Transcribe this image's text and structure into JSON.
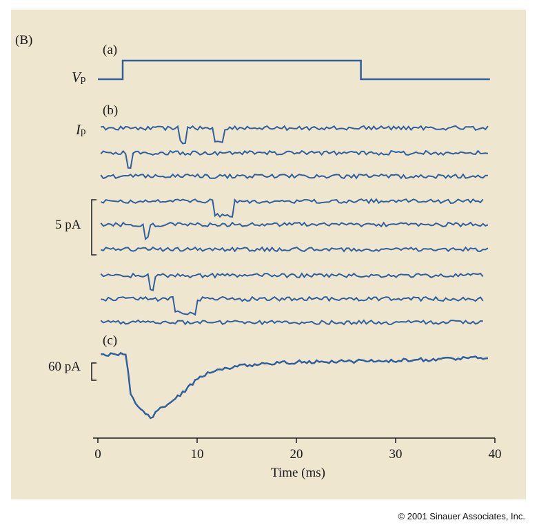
{
  "panel_label": "(B)",
  "copyright": "© 2001 Sinauer Associates, Inc.",
  "colors": {
    "trace": "#2e5f9e",
    "axis": "#1a1a1a",
    "panel": "#efe6cf"
  },
  "chart_data": {
    "type": "line",
    "xlabel": "Time (ms)",
    "xlim": [
      0,
      40
    ],
    "x_ticks": [
      0,
      10,
      20,
      30,
      40
    ],
    "grid": false,
    "subpanels": {
      "a": {
        "label": "(a)",
        "trace_label": "V",
        "trace_label_sub": "p"
      },
      "b": {
        "label": "(b)",
        "trace_label": "I",
        "trace_label_sub": "p",
        "scale_bar": "5 pA"
      },
      "c": {
        "label": "(c)",
        "scale_bar": "60 pA"
      }
    },
    "voltage_step": {
      "x": [
        0,
        2.5,
        2.5,
        26.5,
        26.5,
        39.5
      ],
      "y": [
        0,
        0,
        1,
        1,
        0,
        0
      ]
    },
    "single_channel_traces": [
      {
        "openings": [
          [
            8.2,
            9.0
          ],
          [
            11.8,
            12.6
          ]
        ]
      },
      {
        "openings": [
          [
            3.0,
            3.5
          ]
        ]
      },
      {
        "openings": []
      },
      {
        "openings": [
          [
            11.8,
            13.6
          ]
        ]
      },
      {
        "openings": [
          [
            4.6,
            5.2
          ]
        ]
      },
      {
        "openings": []
      },
      {
        "openings": [
          [
            5.2,
            5.6
          ]
        ]
      },
      {
        "openings": [
          [
            7.6,
            10.0
          ]
        ]
      },
      {
        "openings": []
      }
    ],
    "ensemble_average": {
      "x": [
        0,
        1,
        2,
        2.8,
        3,
        3.3,
        3.8,
        4.4,
        5,
        5.5,
        6,
        7,
        8,
        9,
        10,
        11,
        12,
        14,
        16,
        18,
        20,
        24,
        28,
        32,
        36,
        39
      ],
      "y": [
        0,
        0.5,
        0.8,
        1.2,
        -10,
        -35,
        -44,
        -48,
        -55,
        -56,
        -50,
        -44,
        -38,
        -30,
        -22,
        -16,
        -13,
        -10,
        -8,
        -7,
        -6,
        -5.5,
        -5,
        -4,
        -3,
        -2
      ]
    }
  }
}
